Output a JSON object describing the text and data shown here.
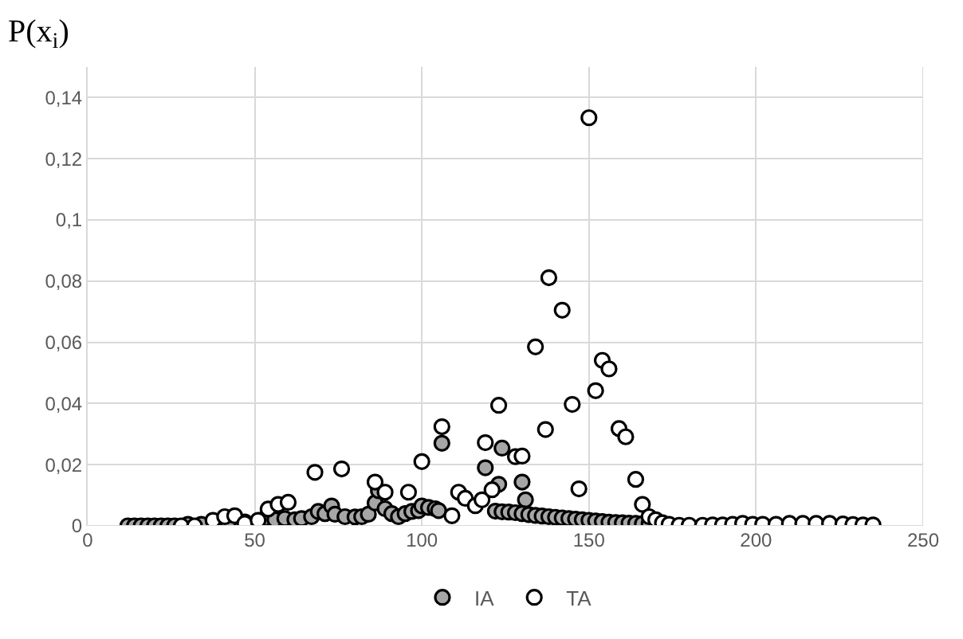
{
  "chart_data": {
    "type": "scatter",
    "ylabel": "P(x$_{i}$)",
    "xlim": [
      0,
      250
    ],
    "xticks": [
      0,
      50,
      100,
      150,
      200,
      250
    ],
    "ylim": [
      0,
      0.15
    ],
    "yticks": [
      {
        "value": 0,
        "label": "0"
      },
      {
        "value": 0.02,
        "label": "0,02"
      },
      {
        "value": 0.04,
        "label": "0,04"
      },
      {
        "value": 0.06,
        "label": "0,06"
      },
      {
        "value": 0.08,
        "label": "0,08"
      },
      {
        "value": 0.1,
        "label": "0,1"
      },
      {
        "value": 0.12,
        "label": "0,12"
      },
      {
        "value": 0.14,
        "label": "0,14"
      }
    ],
    "grid": true,
    "legend": "bottom",
    "marker": "circle",
    "series": [
      {
        "name": "IA",
        "color": "#a6a6a6",
        "x": [
          12,
          14,
          16,
          18,
          20,
          22,
          24,
          26,
          30,
          34,
          42,
          47,
          53,
          56,
          59,
          62,
          64,
          67,
          69,
          71,
          73,
          74,
          77,
          80,
          82,
          84,
          86,
          87,
          89,
          91,
          93,
          95,
          97,
          99,
          100,
          102,
          104,
          105,
          106,
          119,
          123,
          124,
          130,
          131,
          122,
          124,
          126,
          128,
          130,
          132,
          134,
          136,
          138,
          140,
          142,
          144,
          146,
          148,
          150,
          152,
          154,
          156,
          158,
          160,
          162,
          164,
          166,
          168
        ],
        "values": [
          0,
          0,
          0,
          0,
          0,
          0,
          0,
          0,
          0.0005,
          0.0005,
          0.001,
          0.0013,
          0.0024,
          0.002,
          0.0024,
          0.002,
          0.0024,
          0.003,
          0.0047,
          0.004,
          0.0065,
          0.0038,
          0.003,
          0.0029,
          0.003,
          0.0038,
          0.0075,
          0.0115,
          0.0056,
          0.004,
          0.003,
          0.004,
          0.0047,
          0.005,
          0.0065,
          0.006,
          0.0056,
          0.005,
          0.027,
          0.019,
          0.0136,
          0.0254,
          0.0143,
          0.0085,
          0.0048,
          0.0046,
          0.0045,
          0.0043,
          0.004,
          0.0037,
          0.0034,
          0.0032,
          0.003,
          0.0028,
          0.0026,
          0.0024,
          0.0022,
          0.002,
          0.0018,
          0.0016,
          0.0014,
          0.0012,
          0.0011,
          0.001,
          0.0009,
          0.0008,
          0.0007,
          0.0007
        ]
      },
      {
        "name": "TA",
        "color": "#ffffff",
        "x": [
          28,
          32,
          37.5,
          41,
          44,
          47,
          51,
          54,
          57,
          60,
          68,
          76,
          86,
          89,
          96,
          100,
          106,
          109,
          111,
          113,
          116,
          118,
          119,
          121,
          123,
          128,
          130,
          134,
          137,
          138,
          142,
          145,
          147,
          150,
          152,
          154,
          156,
          159,
          161,
          164,
          166,
          168,
          170,
          172,
          174,
          177,
          180,
          184,
          187,
          190,
          193,
          196,
          199,
          202,
          206,
          210,
          214,
          218,
          222,
          226,
          229,
          232,
          235
        ],
        "values": [
          0,
          0,
          0.0018,
          0.003,
          0.0033,
          0.0008,
          0.0018,
          0.0055,
          0.007,
          0.0077,
          0.0175,
          0.0186,
          0.0143,
          0.011,
          0.011,
          0.021,
          0.0324,
          0.0033,
          0.011,
          0.009,
          0.0066,
          0.0085,
          0.0272,
          0.0118,
          0.0394,
          0.0226,
          0.0228,
          0.0585,
          0.0315,
          0.0811,
          0.0705,
          0.0397,
          0.0121,
          0.1334,
          0.0442,
          0.0541,
          0.0513,
          0.0318,
          0.0291,
          0.0152,
          0.007,
          0.003,
          0.002,
          0.001,
          0.0005,
          0.0002,
          0.0002,
          0.0002,
          0.0003,
          0.0003,
          0.0005,
          0.0008,
          0.0005,
          0.0005,
          0.0005,
          0.0008,
          0.0008,
          0.0008,
          0.0008,
          0.0006,
          0.0004,
          0.0003,
          0.0003
        ]
      }
    ]
  }
}
